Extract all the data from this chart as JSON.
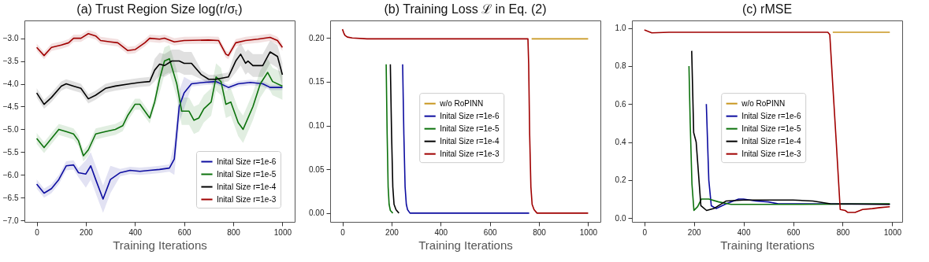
{
  "chart_data": [
    {
      "type": "line",
      "title": "(a) Trust Region Size log(r/σₜ)",
      "xlabel": "Training Iterations",
      "xlim": [
        -50,
        1050
      ],
      "xticks": [
        0,
        200,
        400,
        600,
        800,
        1000
      ],
      "ylim": [
        -7.03,
        -2.61
      ],
      "yticks": [
        {
          "value": -7,
          "label": "−7.0"
        },
        {
          "value": -6.5,
          "label": "−6.5"
        },
        {
          "value": -6,
          "label": "−6.0"
        },
        {
          "value": -5.5,
          "label": "−5.5"
        },
        {
          "value": -5,
          "label": "−5.0"
        },
        {
          "value": -4.5,
          "label": "−4.5"
        },
        {
          "value": -4,
          "label": "−4.0"
        },
        {
          "value": -3.5,
          "label": "−3.5"
        },
        {
          "value": -3,
          "label": "−3.0"
        }
      ],
      "grid": false,
      "legend": "bottom right",
      "series": [
        {
          "name": "Inital Size r=1e-6",
          "color": "#0d0da0",
          "x": [
            0,
            30,
            60,
            90,
            120,
            150,
            170,
            200,
            220,
            240,
            270,
            300,
            340,
            380,
            420,
            460,
            500,
            540,
            560,
            580,
            600,
            630,
            680,
            730,
            780,
            820,
            870,
            920,
            950,
            1000
          ],
          "values": [
            -6.2,
            -6.4,
            -6.3,
            -6.1,
            -5.8,
            -5.78,
            -5.95,
            -5.98,
            -5.8,
            -6.1,
            -6.53,
            -6.1,
            -5.95,
            -5.9,
            -5.92,
            -5.9,
            -5.88,
            -5.85,
            -5.65,
            -4.5,
            -4.2,
            -4.0,
            -3.97,
            -3.95,
            -4.08,
            -4.0,
            -3.97,
            -4.0,
            -4.08,
            -4.08
          ],
          "lower": [
            -6.3,
            -6.5,
            -6.4,
            -6.2,
            -5.9,
            -5.88,
            -6.05,
            -6.28,
            -6.1,
            -6.4,
            -6.83,
            -6.4,
            -6.03,
            -5.98,
            -6.0,
            -5.98,
            -5.96,
            -5.93,
            -6.0,
            -4.85,
            -4.55,
            -4.06,
            -4.03,
            -4.01,
            -4.14,
            -4.06,
            -4.03,
            -4.06,
            -4.14,
            -4.14
          ],
          "upper": [
            -6.1,
            -6.3,
            -6.2,
            -6.0,
            -5.7,
            -5.68,
            -5.85,
            -5.68,
            -5.5,
            -5.8,
            -6.23,
            -5.8,
            -5.87,
            -5.82,
            -5.84,
            -5.82,
            -5.8,
            -5.77,
            -5.3,
            -4.15,
            -3.85,
            -3.94,
            -3.91,
            -3.89,
            -4.02,
            -3.94,
            -3.91,
            -3.94,
            -4.02,
            -4.02
          ]
        },
        {
          "name": "Inital Size r=1e-5",
          "color": "#0c720c",
          "x": [
            0,
            30,
            60,
            90,
            120,
            150,
            170,
            190,
            210,
            240,
            280,
            320,
            350,
            370,
            400,
            420,
            440,
            460,
            480,
            500,
            520,
            540,
            570,
            590,
            620,
            640,
            660,
            680,
            710,
            730,
            750,
            770,
            790,
            820,
            840,
            880,
            910,
            940,
            960,
            1000
          ],
          "values": [
            -5.2,
            -5.4,
            -5.2,
            -5.0,
            -5.05,
            -5.1,
            -5.25,
            -5.58,
            -5.45,
            -5.1,
            -5.05,
            -5.0,
            -4.92,
            -4.7,
            -4.45,
            -4.45,
            -4.6,
            -4.75,
            -4.4,
            -3.9,
            -3.5,
            -3.45,
            -4.0,
            -4.6,
            -4.6,
            -4.8,
            -4.75,
            -4.55,
            -4.4,
            -3.85,
            -3.95,
            -4.45,
            -4.4,
            -4.85,
            -5.0,
            -4.5,
            -4.0,
            -3.75,
            -3.95,
            -4.05
          ],
          "lower": [
            -5.32,
            -5.52,
            -5.32,
            -5.12,
            -5.17,
            -5.22,
            -5.37,
            -5.7,
            -5.57,
            -5.22,
            -5.17,
            -5.12,
            -5.04,
            -4.82,
            -4.57,
            -4.57,
            -4.72,
            -4.87,
            -4.52,
            -4.2,
            -3.8,
            -3.75,
            -4.3,
            -4.9,
            -4.9,
            -5.1,
            -5.05,
            -4.85,
            -4.7,
            -4.15,
            -4.25,
            -4.75,
            -4.7,
            -5.15,
            -5.3,
            -4.8,
            -4.3,
            -4.05,
            -4.25,
            -4.35
          ],
          "upper": [
            -5.08,
            -5.28,
            -5.08,
            -4.88,
            -4.93,
            -4.98,
            -5.13,
            -5.46,
            -5.33,
            -4.98,
            -4.93,
            -4.88,
            -4.8,
            -4.58,
            -4.33,
            -4.33,
            -4.48,
            -4.63,
            -4.28,
            -3.6,
            -3.2,
            -3.15,
            -3.7,
            -4.3,
            -4.3,
            -4.5,
            -4.45,
            -4.25,
            -4.1,
            -3.55,
            -3.65,
            -4.15,
            -4.1,
            -4.55,
            -4.7,
            -4.2,
            -3.7,
            -3.45,
            -3.65,
            -3.75
          ]
        },
        {
          "name": "Inital Size r=1e-4",
          "color": "#000000",
          "x": [
            0,
            30,
            60,
            100,
            120,
            150,
            180,
            210,
            240,
            280,
            320,
            380,
            420,
            460,
            480,
            500,
            520,
            550,
            580,
            600,
            630,
            670,
            700,
            730,
            780,
            810,
            830,
            850,
            860,
            880,
            920,
            950,
            980,
            1000
          ],
          "values": [
            -4.2,
            -4.45,
            -4.3,
            -4.05,
            -4.0,
            -4.05,
            -4.1,
            -4.33,
            -4.25,
            -4.1,
            -4.05,
            -4.0,
            -3.97,
            -3.95,
            -3.7,
            -3.57,
            -3.6,
            -3.5,
            -3.5,
            -3.55,
            -3.55,
            -3.8,
            -3.9,
            -3.9,
            -3.85,
            -3.5,
            -3.35,
            -3.55,
            -3.5,
            -3.6,
            -3.6,
            -3.3,
            -3.4,
            -3.8
          ],
          "lower": [
            -4.3,
            -4.55,
            -4.4,
            -4.15,
            -4.1,
            -4.15,
            -4.2,
            -4.43,
            -4.35,
            -4.2,
            -4.15,
            -4.1,
            -4.07,
            -4.05,
            -3.95,
            -3.82,
            -3.85,
            -3.75,
            -3.75,
            -3.8,
            -3.8,
            -3.9,
            -4.0,
            -4.0,
            -3.95,
            -3.75,
            -3.6,
            -3.8,
            -3.75,
            -3.85,
            -3.85,
            -3.55,
            -3.65,
            -4.05
          ],
          "upper": [
            -4.1,
            -4.35,
            -4.2,
            -3.95,
            -3.9,
            -3.95,
            -4.0,
            -4.23,
            -4.15,
            -4.0,
            -3.95,
            -3.9,
            -3.87,
            -3.85,
            -3.45,
            -3.32,
            -3.35,
            -3.25,
            -3.25,
            -3.3,
            -3.3,
            -3.7,
            -3.8,
            -3.8,
            -3.75,
            -3.25,
            -3.1,
            -3.3,
            -3.25,
            -3.35,
            -3.35,
            -3.05,
            -3.15,
            -3.55
          ]
        },
        {
          "name": "Inital Size r=1e-3",
          "color": "#a00000",
          "x": [
            0,
            30,
            60,
            100,
            130,
            150,
            180,
            210,
            240,
            260,
            300,
            330,
            370,
            400,
            440,
            460,
            500,
            520,
            560,
            600,
            700,
            740,
            770,
            780,
            810,
            850,
            900,
            950,
            980,
            1000
          ],
          "values": [
            -3.2,
            -3.38,
            -3.2,
            -3.15,
            -3.1,
            -3.0,
            -3.0,
            -2.9,
            -2.95,
            -3.05,
            -3.08,
            -3.1,
            -3.27,
            -3.25,
            -3.1,
            -3.0,
            -3.02,
            -3.0,
            -3.08,
            -3.05,
            -3.04,
            -3.05,
            -3.35,
            -3.38,
            -3.1,
            -3.05,
            -3.02,
            -2.98,
            -3.05,
            -3.2
          ],
          "lower": [
            -3.28,
            -3.46,
            -3.28,
            -3.23,
            -3.18,
            -3.08,
            -3.08,
            -2.98,
            -3.03,
            -3.13,
            -3.16,
            -3.18,
            -3.35,
            -3.33,
            -3.18,
            -3.08,
            -3.1,
            -3.08,
            -3.16,
            -3.13,
            -3.12,
            -3.13,
            -3.43,
            -3.46,
            -3.18,
            -3.13,
            -3.1,
            -3.06,
            -3.13,
            -3.28
          ],
          "upper": [
            -3.12,
            -3.3,
            -3.12,
            -3.07,
            -3.02,
            -2.92,
            -2.92,
            -2.82,
            -2.87,
            -2.97,
            -3.0,
            -3.02,
            -3.19,
            -3.17,
            -3.02,
            -2.92,
            -2.94,
            -2.92,
            -3.0,
            -2.97,
            -2.96,
            -2.97,
            -3.27,
            -3.3,
            -3.02,
            -2.97,
            -2.94,
            -2.9,
            -2.97,
            -3.12
          ]
        }
      ]
    },
    {
      "type": "line",
      "title": "(b) Training Loss ℒ in Eq. (2)",
      "xlabel": "Training Iterations",
      "xlim": [
        -50,
        1050
      ],
      "xticks": [
        0,
        200,
        400,
        600,
        800,
        1000
      ],
      "ylim": [
        -0.01,
        0.22
      ],
      "yticks": [
        {
          "value": 0,
          "label": "0.00"
        },
        {
          "value": 0.05,
          "label": "0.05"
        },
        {
          "value": 0.1,
          "label": "0.10"
        },
        {
          "value": 0.15,
          "label": "0.15"
        },
        {
          "value": 0.2,
          "label": "0.20"
        }
      ],
      "grid": false,
      "legend": "center",
      "series": [
        {
          "name": "w/o RoPINN",
          "color": "#c8961e",
          "x": [
            770,
            1000
          ],
          "values": [
            0.199,
            0.199
          ]
        },
        {
          "name": "Inital Size r=1e-6",
          "color": "#0d0da0",
          "x": [
            245,
            250,
            255,
            260,
            265,
            275,
            760
          ],
          "values": [
            0.17,
            0.09,
            0.03,
            0.01,
            0.004,
            0,
            0
          ]
        },
        {
          "name": "Inital Size r=1e-5",
          "color": "#0c720c",
          "x": [
            178,
            182,
            186,
            190,
            195,
            205
          ],
          "values": [
            0.17,
            0.09,
            0.03,
            0.01,
            0.003,
            0
          ]
        },
        {
          "name": "Inital Size r=1e-4",
          "color": "#000000",
          "x": [
            195,
            200,
            205,
            210,
            218,
            230
          ],
          "values": [
            0.17,
            0.09,
            0.03,
            0.01,
            0.004,
            0
          ]
        },
        {
          "name": "Inital Size r=1e-3",
          "color": "#a00000",
          "x": [
            0,
            5,
            10,
            20,
            40,
            100,
            755,
            758,
            762,
            767,
            772,
            780,
            792,
            1000
          ],
          "values": [
            0.21,
            0.206,
            0.203,
            0.201,
            0.2,
            0.199,
            0.199,
            0.17,
            0.09,
            0.03,
            0.01,
            0.004,
            0,
            0
          ]
        }
      ]
    },
    {
      "type": "line",
      "title": "(c) rMSE",
      "xlabel": "Training Iterations",
      "xlim": [
        -50,
        1040
      ],
      "xticks": [
        0,
        200,
        400,
        600,
        800,
        1000
      ],
      "ylim": [
        -0.02,
        1.04
      ],
      "yticks": [
        {
          "value": 0,
          "label": "0.0"
        },
        {
          "value": 0.2,
          "label": "0.2"
        },
        {
          "value": 0.4,
          "label": "0.4"
        },
        {
          "value": 0.6,
          "label": "0.6"
        },
        {
          "value": 0.8,
          "label": "0.8"
        },
        {
          "value": 1,
          "label": "1.0"
        }
      ],
      "grid": false,
      "legend": "center",
      "series": [
        {
          "name": "w/o RoPINN",
          "color": "#c8961e",
          "x": [
            760,
            990
          ],
          "values": [
            0.978,
            0.978
          ]
        },
        {
          "name": "Inital Size r=1e-6",
          "color": "#0d0da0",
          "x": [
            250,
            260,
            270,
            290,
            330,
            380,
            400,
            450,
            500,
            540,
            990
          ],
          "values": [
            0.6,
            0.2,
            0.065,
            0.05,
            0.075,
            0.1,
            0.1,
            0.09,
            0.085,
            0.075,
            0.073
          ]
        },
        {
          "name": "Inital Size r=1e-5",
          "color": "#0c720c",
          "x": [
            180,
            185,
            192,
            200,
            215,
            230,
            260,
            300,
            350,
            600,
            990
          ],
          "values": [
            0.8,
            0.5,
            0.18,
            0.04,
            0.06,
            0.1,
            0.1,
            0.085,
            0.072,
            0.072,
            0.075
          ]
        },
        {
          "name": "Inital Size r=1e-4",
          "color": "#000000",
          "x": [
            191,
            199,
            209,
            228,
            251,
            280,
            330,
            400,
            600,
            680,
            750,
            990
          ],
          "values": [
            0.88,
            0.45,
            0.4,
            0.065,
            0.04,
            0.05,
            0.09,
            0.095,
            0.095,
            0.09,
            0.075,
            0.072
          ]
        },
        {
          "name": "Inital Size r=1e-3",
          "color": "#a00000",
          "x": [
            0,
            10,
            30,
            100,
            740,
            748,
            760,
            774,
            790,
            810,
            820,
            850,
            880,
            920,
            950,
            990
          ],
          "values": [
            0.99,
            0.985,
            0.975,
            0.978,
            0.978,
            0.965,
            0.7,
            0.4,
            0.045,
            0.04,
            0.03,
            0.03,
            0.045,
            0.05,
            0.055,
            0.06
          ]
        }
      ]
    }
  ]
}
